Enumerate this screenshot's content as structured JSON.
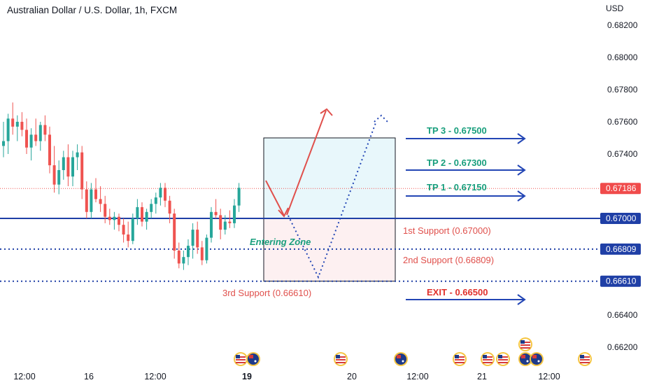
{
  "header": {
    "title": "Australian Dollar / U.S. Dollar, 1h, FXCM",
    "currency": "USD"
  },
  "colors": {
    "bull": "#26a69a",
    "bear": "#ef5350",
    "support_line": "#1f3fa6",
    "tp_text": "#179e7c",
    "support_text": "#e0504c",
    "exit_text": "#e0302b",
    "entry_box_upper": "#e8f7fb",
    "entry_box_lower": "#fdf0f1",
    "current_price_badge": "#f04b4b",
    "level_badge": "#1f3fa6"
  },
  "annotations": {
    "tp3": "TP 3 - 0.67500",
    "tp2": "TP 2 - 0.67300",
    "tp1": "TP 1 - 0.67150",
    "support1": "1st Support (0.67000)",
    "support2": "2nd Support (0.66809)",
    "support3": "3rd Support (0.66610)",
    "exit": "EXIT - 0.66500",
    "entering_zone": "Entering Zone"
  },
  "events": {
    "icons": [
      "us-flag-icon",
      "au-flag-icon"
    ]
  },
  "chart_data": {
    "type": "candlestick",
    "title": "Australian Dollar / U.S. Dollar, 1h, FXCM",
    "y_axis": {
      "ticks": [
        0.662,
        0.664,
        0.666,
        0.668,
        0.67,
        0.672,
        0.674,
        0.676,
        0.678,
        0.68,
        0.682
      ],
      "tick_labels": [
        "0.66200",
        "0.66400",
        "0.66600",
        "0.66800",
        "0.67000",
        "0.67200",
        "0.67400",
        "0.67600",
        "0.67800",
        "0.68000",
        "0.68200"
      ],
      "range": [
        0.6612,
        0.6832
      ],
      "unit": "USD"
    },
    "x_axis": {
      "tick_labels": [
        "12:00",
        "16",
        "12:00",
        "19",
        "20",
        "12:00",
        "21",
        "12:00"
      ],
      "bold_labels": [
        "19"
      ]
    },
    "current_price": 0.67186,
    "price_badges": [
      {
        "label": "0.67186",
        "value": 0.67186,
        "style": "current"
      },
      {
        "label": "0.67000",
        "value": 0.67,
        "style": "level"
      },
      {
        "label": "0.66809",
        "value": 0.66809,
        "style": "level"
      },
      {
        "label": "0.66610",
        "value": 0.6661,
        "style": "level"
      }
    ],
    "horizontal_lines": [
      {
        "value": 0.67,
        "style": "solid"
      },
      {
        "value": 0.66809,
        "style": "dotted"
      },
      {
        "value": 0.6661,
        "style": "dotted"
      },
      {
        "value": 0.67186,
        "style": "price"
      }
    ],
    "zones": [
      {
        "name": "target zone",
        "from": 0.67,
        "to": 0.675
      },
      {
        "name": "entering zone",
        "from": 0.6661,
        "to": 0.67
      }
    ],
    "candles": [
      {
        "o": 0.6745,
        "h": 0.676,
        "l": 0.6738,
        "c": 0.6748
      },
      {
        "o": 0.6748,
        "h": 0.6765,
        "l": 0.674,
        "c": 0.6762
      },
      {
        "o": 0.6762,
        "h": 0.6772,
        "l": 0.6752,
        "c": 0.6757
      },
      {
        "o": 0.6757,
        "h": 0.6764,
        "l": 0.6748,
        "c": 0.676
      },
      {
        "o": 0.676,
        "h": 0.6766,
        "l": 0.6751,
        "c": 0.6755
      },
      {
        "o": 0.6755,
        "h": 0.6762,
        "l": 0.674,
        "c": 0.6744
      },
      {
        "o": 0.6744,
        "h": 0.6756,
        "l": 0.6736,
        "c": 0.6752
      },
      {
        "o": 0.6752,
        "h": 0.6762,
        "l": 0.6745,
        "c": 0.6748
      },
      {
        "o": 0.6748,
        "h": 0.676,
        "l": 0.6742,
        "c": 0.6758
      },
      {
        "o": 0.6758,
        "h": 0.6764,
        "l": 0.6748,
        "c": 0.6752
      },
      {
        "o": 0.6752,
        "h": 0.6757,
        "l": 0.6728,
        "c": 0.6733
      },
      {
        "o": 0.6733,
        "h": 0.6745,
        "l": 0.6716,
        "c": 0.6721
      },
      {
        "o": 0.6721,
        "h": 0.6736,
        "l": 0.6715,
        "c": 0.673
      },
      {
        "o": 0.673,
        "h": 0.6742,
        "l": 0.6724,
        "c": 0.6738
      },
      {
        "o": 0.6738,
        "h": 0.6746,
        "l": 0.672,
        "c": 0.6726
      },
      {
        "o": 0.6726,
        "h": 0.6742,
        "l": 0.672,
        "c": 0.6738
      },
      {
        "o": 0.6738,
        "h": 0.6746,
        "l": 0.673,
        "c": 0.6741
      },
      {
        "o": 0.6741,
        "h": 0.6745,
        "l": 0.6712,
        "c": 0.6718
      },
      {
        "o": 0.6718,
        "h": 0.6723,
        "l": 0.67,
        "c": 0.6704
      },
      {
        "o": 0.6704,
        "h": 0.6722,
        "l": 0.67,
        "c": 0.6718
      },
      {
        "o": 0.6718,
        "h": 0.6725,
        "l": 0.671,
        "c": 0.6712
      },
      {
        "o": 0.6712,
        "h": 0.672,
        "l": 0.6704,
        "c": 0.6709
      },
      {
        "o": 0.6709,
        "h": 0.6714,
        "l": 0.6697,
        "c": 0.6701
      },
      {
        "o": 0.6701,
        "h": 0.6706,
        "l": 0.6696,
        "c": 0.6699
      },
      {
        "o": 0.6699,
        "h": 0.6704,
        "l": 0.6693,
        "c": 0.6701
      },
      {
        "o": 0.6701,
        "h": 0.6703,
        "l": 0.6692,
        "c": 0.6696
      },
      {
        "o": 0.6696,
        "h": 0.67,
        "l": 0.6685,
        "c": 0.669
      },
      {
        "o": 0.669,
        "h": 0.6698,
        "l": 0.6682,
        "c": 0.6686
      },
      {
        "o": 0.6686,
        "h": 0.6703,
        "l": 0.6684,
        "c": 0.67
      },
      {
        "o": 0.67,
        "h": 0.6712,
        "l": 0.6696,
        "c": 0.6707
      },
      {
        "o": 0.6707,
        "h": 0.671,
        "l": 0.6695,
        "c": 0.6698
      },
      {
        "o": 0.6698,
        "h": 0.6706,
        "l": 0.6693,
        "c": 0.6704
      },
      {
        "o": 0.6704,
        "h": 0.6712,
        "l": 0.67,
        "c": 0.6709
      },
      {
        "o": 0.6709,
        "h": 0.6716,
        "l": 0.6703,
        "c": 0.6713
      },
      {
        "o": 0.6713,
        "h": 0.6722,
        "l": 0.6708,
        "c": 0.6719
      },
      {
        "o": 0.6719,
        "h": 0.6722,
        "l": 0.6707,
        "c": 0.6711
      },
      {
        "o": 0.6711,
        "h": 0.6714,
        "l": 0.6697,
        "c": 0.6703
      },
      {
        "o": 0.6703,
        "h": 0.6706,
        "l": 0.6675,
        "c": 0.668
      },
      {
        "o": 0.668,
        "h": 0.6685,
        "l": 0.6669,
        "c": 0.6672
      },
      {
        "o": 0.6672,
        "h": 0.668,
        "l": 0.6668,
        "c": 0.6676
      },
      {
        "o": 0.6676,
        "h": 0.6687,
        "l": 0.6671,
        "c": 0.6683
      },
      {
        "o": 0.6683,
        "h": 0.6697,
        "l": 0.6675,
        "c": 0.6693
      },
      {
        "o": 0.6693,
        "h": 0.6698,
        "l": 0.6678,
        "c": 0.6682
      },
      {
        "o": 0.6682,
        "h": 0.6686,
        "l": 0.6671,
        "c": 0.6674
      },
      {
        "o": 0.6674,
        "h": 0.669,
        "l": 0.6672,
        "c": 0.6688
      },
      {
        "o": 0.6688,
        "h": 0.6707,
        "l": 0.6685,
        "c": 0.6704
      },
      {
        "o": 0.6704,
        "h": 0.6712,
        "l": 0.67,
        "c": 0.6702
      },
      {
        "o": 0.6702,
        "h": 0.6706,
        "l": 0.6687,
        "c": 0.6693
      },
      {
        "o": 0.6693,
        "h": 0.6702,
        "l": 0.669,
        "c": 0.6698
      },
      {
        "o": 0.6698,
        "h": 0.6705,
        "l": 0.6694,
        "c": 0.6697
      },
      {
        "o": 0.6697,
        "h": 0.6712,
        "l": 0.6694,
        "c": 0.6708
      },
      {
        "o": 0.6708,
        "h": 0.6722,
        "l": 0.6704,
        "c": 0.6719
      }
    ]
  }
}
